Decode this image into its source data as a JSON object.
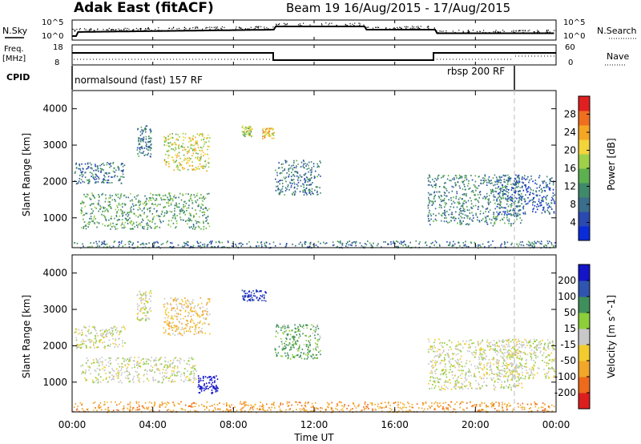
{
  "header": {
    "station": "Adak East (fitACF)",
    "beam_date": "Beam 19  16/Aug/2015 - 17/Aug/2015"
  },
  "strips": {
    "nsky_label": "N.Sky",
    "nsky_ticks": [
      "10^5",
      "10^0"
    ],
    "nsearch_label": "N.Search",
    "nsearch_ticks": [
      "10^5",
      "10^0"
    ],
    "freq_label_1": "Freq.",
    "freq_label_2": "[MHz]",
    "freq_ticks": [
      "18",
      "8"
    ],
    "nave_label": "Nave",
    "nave_ticks": [
      "60",
      "0"
    ],
    "cpid_label": "CPID",
    "cpid_mode_1": "normalsound (fast) 157 RF",
    "cpid_mode_2": "rbsp 200 RF"
  },
  "axes": {
    "x_ticks": [
      "00:00",
      "04:00",
      "08:00",
      "12:00",
      "16:00",
      "20:00",
      "00:00"
    ],
    "xlabel": "Time UT",
    "y_ticks": [
      "1000",
      "2000",
      "3000",
      "4000"
    ],
    "ylabel": "Slant Range [km]"
  },
  "colorbars": {
    "power_label": "Power [dB]",
    "power_ticks": [
      "4",
      "8",
      "12",
      "16",
      "20",
      "24",
      "28"
    ],
    "velocity_label": "Velocity [m s^-1]",
    "velocity_ticks": [
      "-200",
      "-100",
      "-50",
      "-15",
      "15",
      "50",
      "100",
      "200"
    ]
  },
  "chart_data": [
    {
      "type": "heatmap",
      "panel": "power",
      "x_range_hours": [
        0,
        24
      ],
      "ylim": [
        180,
        4500
      ],
      "colorbar_range_db": [
        0,
        30
      ],
      "mode_change_hour": 22,
      "regions": [
        {
          "t": [
            0.1,
            2.6
          ],
          "r": [
            1950,
            2550
          ],
          "value": 8
        },
        {
          "t": [
            0.4,
            6.8
          ],
          "r": [
            700,
            1700
          ],
          "value": 12
        },
        {
          "t": [
            3.2,
            3.9
          ],
          "r": [
            2700,
            3550
          ],
          "value": 8
        },
        {
          "t": [
            4.5,
            6.8
          ],
          "r": [
            2300,
            3350
          ],
          "value": 18
        },
        {
          "t": [
            8.4,
            8.9
          ],
          "r": [
            3250,
            3550
          ],
          "value": 16
        },
        {
          "t": [
            9.4,
            10.0
          ],
          "r": [
            3200,
            3500
          ],
          "value": 20
        },
        {
          "t": [
            10.0,
            12.3
          ],
          "r": [
            1650,
            2600
          ],
          "value": 8
        },
        {
          "t": [
            17.6,
            22.3
          ],
          "r": [
            800,
            2200
          ],
          "value": 10
        },
        {
          "t": [
            21.0,
            23.9
          ],
          "r": [
            1100,
            2200
          ],
          "value": 6
        },
        {
          "t": [
            0,
            24
          ],
          "r": [
            190,
            380
          ],
          "value": 8
        }
      ]
    },
    {
      "type": "heatmap",
      "panel": "velocity",
      "x_range_hours": [
        0,
        24
      ],
      "ylim": [
        180,
        4500
      ],
      "colorbar_range_ms": [
        -250,
        250
      ],
      "mode_change_hour": 22,
      "regions": [
        {
          "t": [
            0.1,
            2.6
          ],
          "r": [
            1950,
            2550
          ],
          "value": 0
        },
        {
          "t": [
            0.4,
            6.2
          ],
          "r": [
            1000,
            1700
          ],
          "value": 0
        },
        {
          "t": [
            6.2,
            7.2
          ],
          "r": [
            700,
            1200
          ],
          "value": 220
        },
        {
          "t": [
            3.2,
            3.9
          ],
          "r": [
            2700,
            3550
          ],
          "value": 0
        },
        {
          "t": [
            4.5,
            6.8
          ],
          "r": [
            2300,
            3350
          ],
          "value": -30
        },
        {
          "t": [
            8.4,
            9.6
          ],
          "r": [
            3250,
            3550
          ],
          "value": 150
        },
        {
          "t": [
            10.0,
            12.3
          ],
          "r": [
            1650,
            2600
          ],
          "value": 40
        },
        {
          "t": [
            17.6,
            22.3
          ],
          "r": [
            800,
            2200
          ],
          "value": 0
        },
        {
          "t": [
            21.0,
            23.9
          ],
          "r": [
            1100,
            2200
          ],
          "value": 0
        },
        {
          "t": [
            0,
            24
          ],
          "r": [
            190,
            480
          ],
          "value": -60
        }
      ]
    }
  ]
}
